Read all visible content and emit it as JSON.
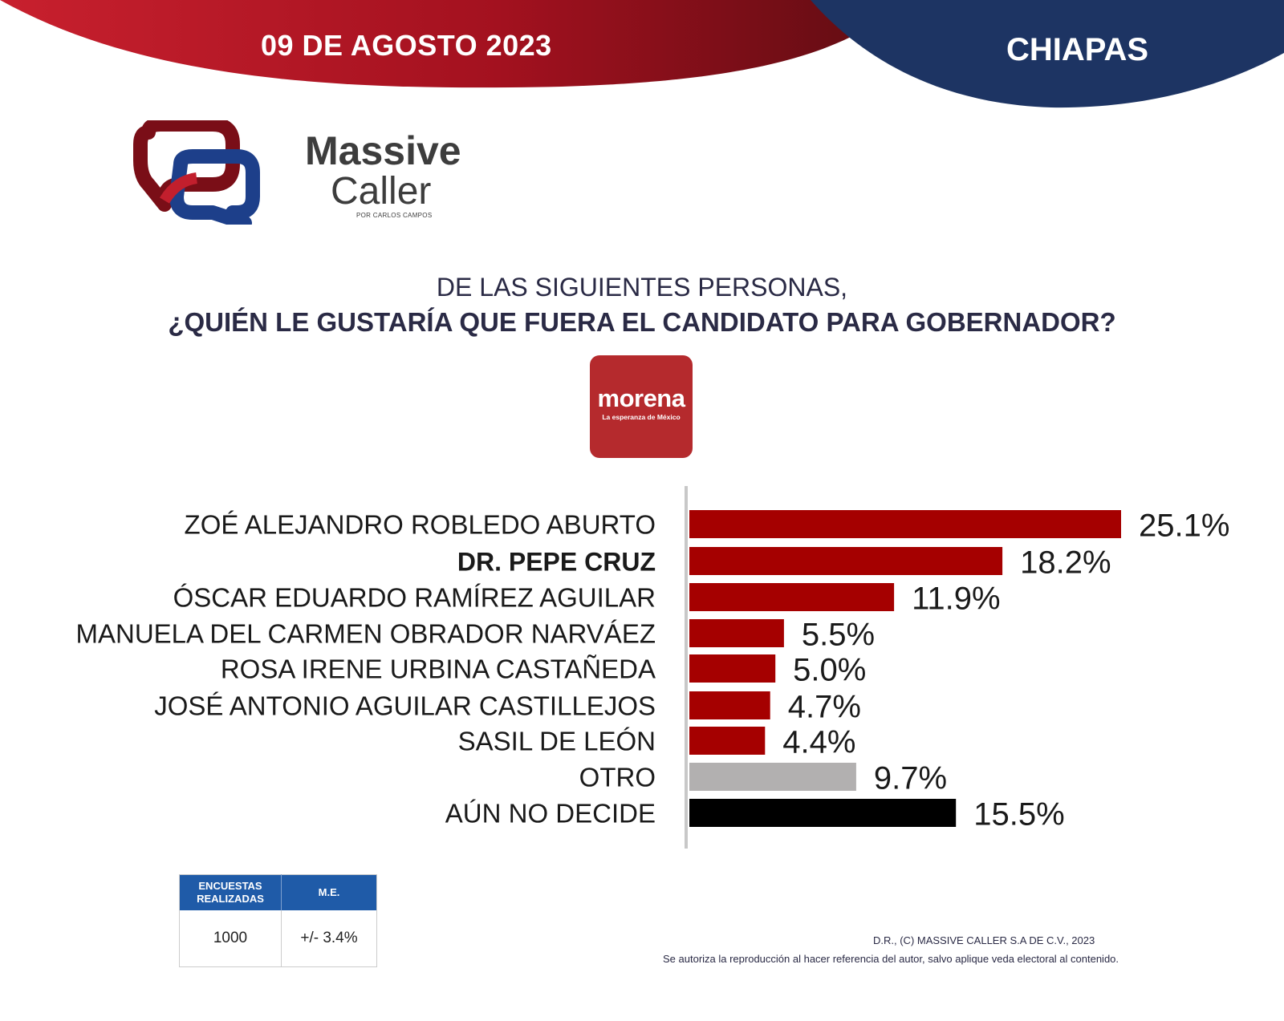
{
  "header": {
    "date": "09 DE AGOSTO 2023",
    "region": "CHIAPAS",
    "colors": {
      "red": "#b01e2a",
      "dark_red": "#6b0d14",
      "navy": "#1d3463"
    }
  },
  "brand": {
    "name": "Massive",
    "sub": "Caller",
    "tagline": "POR CARLOS CAMPOS",
    "logo_icon": "massive-caller-logo-icon"
  },
  "question": {
    "line1": "DE LAS SIGUIENTES PERSONAS,",
    "line2": "¿QUIÉN LE GUSTARÍA QUE FUERA EL CANDIDATO PARA GOBERNADOR?"
  },
  "party": {
    "name": "morena",
    "slogan": "La esperanza de México",
    "color": "#b52a2d"
  },
  "chart_data": {
    "type": "bar",
    "orientation": "horizontal",
    "categories": [
      "ZOÉ ALEJANDRO ROBLEDO ABURTO",
      "DR. PEPE CRUZ",
      "ÓSCAR EDUARDO RAMÍREZ AGUILAR",
      "MANUELA DEL CARMEN OBRADOR NARVÁEZ",
      "ROSA IRENE URBINA CASTAÑEDA",
      "JOSÉ ANTONIO AGUILAR CASTILLEJOS",
      "SASIL DE LEÓN",
      "OTRO",
      "AÚN NO DECIDE"
    ],
    "values": [
      25.1,
      18.2,
      11.9,
      5.5,
      5.0,
      4.7,
      4.4,
      9.7,
      15.5
    ],
    "value_labels": [
      "25.1%",
      "18.2%",
      "11.9%",
      "5.5%",
      "5.0%",
      "4.7%",
      "4.4%",
      "9.7%",
      "15.5%"
    ],
    "bold_categories": [
      "DR. PEPE CRUZ"
    ],
    "bar_colors": [
      "#a50000",
      "#a50000",
      "#a50000",
      "#a50000",
      "#a50000",
      "#a50000",
      "#a50000",
      "#b2b0b0",
      "#000000"
    ],
    "unit": "%",
    "xlim": [
      0,
      25.1
    ]
  },
  "stats": {
    "headers": [
      "ENCUESTAS REALIZADAS",
      "M.E."
    ],
    "values": [
      "1000",
      "+/- 3.4%"
    ]
  },
  "footer": {
    "copyright": "D.R., (C) MASSIVE CALLER S.A DE C.V., 2023",
    "notice": "Se autoriza la reproducción al hacer referencia del autor, salvo aplique veda electoral al contenido."
  }
}
